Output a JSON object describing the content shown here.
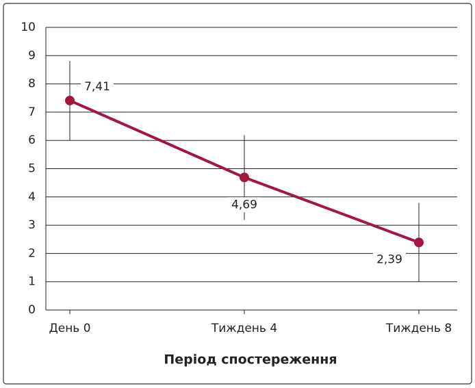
{
  "chart_data": {
    "type": "line",
    "x_label": "Період спостереження",
    "categories": [
      "День 0",
      "Тиждень 4",
      "Тиждень 8"
    ],
    "values": [
      7.41,
      4.69,
      2.39
    ],
    "value_labels": [
      "7,41",
      "4,69",
      "2,39"
    ],
    "errors": [
      1.4,
      1.5,
      1.4
    ],
    "color": "#a3173f",
    "ylim": [
      0,
      10
    ],
    "yticks": [
      0,
      1,
      2,
      3,
      4,
      5,
      6,
      7,
      8,
      9,
      10
    ],
    "grid": true
  }
}
